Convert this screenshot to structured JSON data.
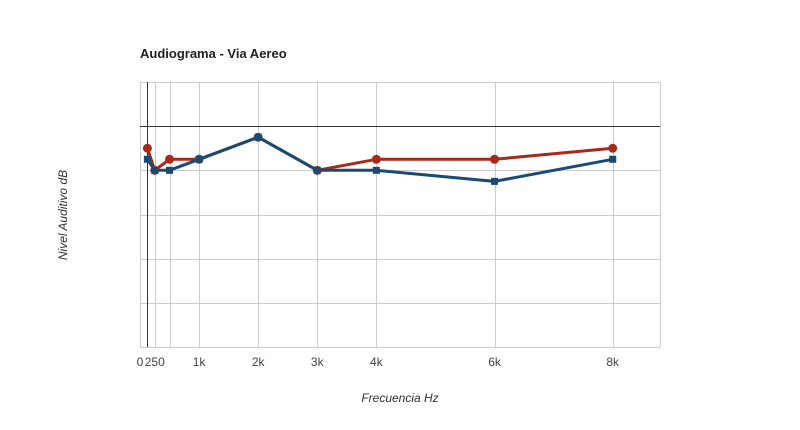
{
  "chart_data": {
    "type": "line",
    "title": "Audiograma - Via Aereo",
    "xlabel": "Frecuencia Hz",
    "ylabel": "Nivel Auditivo dB",
    "xlim": [
      0,
      8800
    ],
    "ylim": [
      -100,
      20
    ],
    "x_ticks": [
      {
        "value": 0,
        "label": "0"
      },
      {
        "value": 250,
        "label": "250"
      },
      {
        "value": 1000,
        "label": "1k"
      },
      {
        "value": 2000,
        "label": "2k"
      },
      {
        "value": 3000,
        "label": "3k"
      },
      {
        "value": 4000,
        "label": "4k"
      },
      {
        "value": 6000,
        "label": "6k"
      },
      {
        "value": 8000,
        "label": "8k"
      }
    ],
    "x_gridlines": [
      125,
      250,
      500,
      1000,
      2000,
      3000,
      4000,
      6000,
      8000,
      8800
    ],
    "y_gridlines": [
      20,
      0,
      -20,
      -40,
      -60,
      -80,
      -100
    ],
    "grid": true,
    "legend": false,
    "series": [
      {
        "color": "#a8281a",
        "marker": "circle",
        "points": [
          {
            "x": 125,
            "y": -10
          },
          {
            "x": 250,
            "y": -20
          },
          {
            "x": 500,
            "y": -15
          },
          {
            "x": 1000,
            "y": -15
          },
          {
            "x": 2000,
            "y": -5
          },
          {
            "x": 3000,
            "y": -20
          },
          {
            "x": 4000,
            "y": -15
          },
          {
            "x": 6000,
            "y": -15
          },
          {
            "x": 8000,
            "y": -10
          }
        ]
      },
      {
        "color": "#1a4a73",
        "marker": "square",
        "points": [
          {
            "x": 125,
            "y": -15
          },
          {
            "x": 250,
            "y": -20
          },
          {
            "x": 500,
            "y": -20
          },
          {
            "x": 1000,
            "y": -15
          },
          {
            "x": 2000,
            "y": -5
          },
          {
            "x": 3000,
            "y": -20
          },
          {
            "x": 4000,
            "y": -20
          },
          {
            "x": 6000,
            "y": -25
          },
          {
            "x": 8000,
            "y": -15
          }
        ]
      }
    ]
  }
}
